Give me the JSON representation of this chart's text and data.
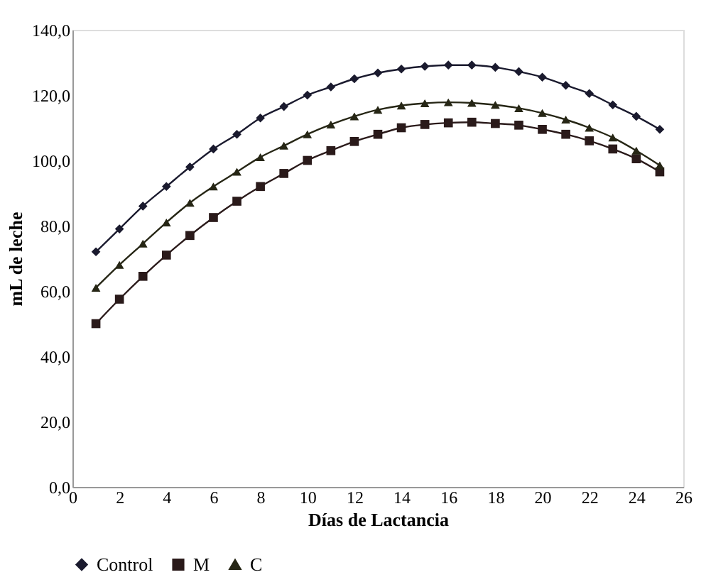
{
  "chart_data": {
    "type": "line",
    "xlabel": "Días de Lactancia",
    "ylabel": "mL de leche",
    "x": [
      1,
      2,
      3,
      4,
      5,
      6,
      7,
      8,
      9,
      10,
      11,
      12,
      13,
      14,
      15,
      16,
      17,
      18,
      19,
      20,
      21,
      22,
      23,
      24,
      25
    ],
    "series": [
      {
        "name": "Control",
        "color": "#1a1a2e",
        "marker": "diamond",
        "values": [
          72,
          79,
          86,
          92,
          98,
          103.5,
          108,
          113,
          116.5,
          120,
          122.5,
          125,
          126.8,
          128,
          128.8,
          129.2,
          129.2,
          128.5,
          127.2,
          125.5,
          123,
          120.5,
          117,
          113.5,
          109.5
        ]
      },
      {
        "name": "M",
        "color": "#2a1a1a",
        "marker": "square",
        "values": [
          50,
          57.5,
          64.5,
          71,
          77,
          82.5,
          87.5,
          92,
          96,
          100,
          103,
          105.8,
          108,
          110,
          111,
          111.5,
          111.7,
          111.3,
          110.8,
          109.5,
          108,
          106,
          103.5,
          100.5,
          96.5
        ]
      },
      {
        "name": "C",
        "color": "#262615",
        "marker": "triangle",
        "values": [
          61,
          68,
          74.5,
          81,
          87,
          92,
          96.5,
          101,
          104.5,
          108,
          111,
          113.5,
          115.5,
          116.8,
          117.5,
          117.8,
          117.6,
          117,
          116,
          114.5,
          112.5,
          110,
          107,
          103,
          98.5
        ]
      }
    ],
    "xlim": [
      0,
      26
    ],
    "xticks": [
      0,
      2,
      4,
      6,
      8,
      10,
      12,
      14,
      16,
      18,
      20,
      22,
      24,
      26
    ],
    "ylim": [
      0,
      140
    ],
    "yticks": [
      {
        "value": 0,
        "label": "0,0"
      },
      {
        "value": 20,
        "label": "20,0"
      },
      {
        "value": 40,
        "label": "40,0"
      },
      {
        "value": 60,
        "label": "60,0"
      },
      {
        "value": 80,
        "label": "80,0"
      },
      {
        "value": 100,
        "label": "100,0"
      },
      {
        "value": 120,
        "label": "120,0"
      },
      {
        "value": 140,
        "label": "140,0"
      }
    ],
    "grid": false,
    "legend": "bottom",
    "line_style": "solid"
  }
}
